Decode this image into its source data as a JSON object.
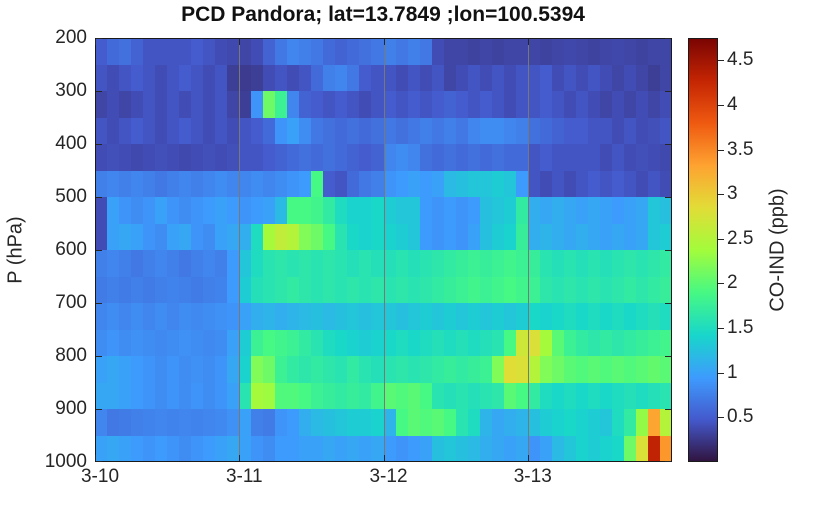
{
  "figure": {
    "background": "#ffffff",
    "text_color": "#262626"
  },
  "chart_data": {
    "type": "heatmap",
    "title": "PCD Pandora; lat=13.7849 ;lon=100.5394",
    "station": "PCD Pandora",
    "lat": 13.7849,
    "lon": 100.5394,
    "xlabel": "",
    "ylabel": "P (hPa)",
    "colorbar_label": "CO-IND (ppb)",
    "x_tick_labels": [
      "3-10",
      "3-11",
      "3-12",
      "3-13"
    ],
    "x_tick_positions_days": [
      0,
      1,
      2,
      3
    ],
    "x_range_days": [
      0,
      4
    ],
    "time_step_hours": 2,
    "gridlines_at_days": [
      1,
      2,
      3
    ],
    "gridline_color": "#787878",
    "y_tick_labels": [
      "200",
      "300",
      "400",
      "500",
      "600",
      "700",
      "800",
      "900",
      "1000"
    ],
    "y_ticks_hpa": [
      200,
      300,
      400,
      500,
      600,
      700,
      800,
      900,
      1000
    ],
    "pressure_range_hpa": [
      200,
      1000
    ],
    "pressure_row_edges_hpa": [
      200,
      250,
      300,
      350,
      400,
      450,
      500,
      550,
      600,
      650,
      700,
      750,
      800,
      850,
      900,
      950,
      1000
    ],
    "value_range_ppb": [
      0,
      4.75
    ],
    "colorbar_tick_labels": [
      "0.5",
      "1",
      "1.5",
      "2",
      "2.5",
      "3",
      "3.5",
      "4",
      "4.5"
    ],
    "colorbar_tick_values": [
      0.5,
      1,
      1.5,
      2,
      2.5,
      3,
      3.5,
      4,
      4.5
    ],
    "colormap": {
      "name": "turbo",
      "stops": [
        "#30123b",
        "#4458cb",
        "#3e9bfe",
        "#18d6cb",
        "#46f884",
        "#a2fc3c",
        "#e1dd37",
        "#fea331",
        "#ef5a11",
        "#c42503",
        "#7a0403"
      ]
    },
    "values_ppb": [
      [
        0.5,
        0.6,
        0.65,
        0.55,
        0.45,
        0.45,
        0.45,
        0.45,
        0.5,
        0.45,
        0.4,
        0.38,
        0.35,
        0.4,
        0.55,
        0.7,
        0.8,
        0.75,
        0.7,
        0.6,
        0.55,
        0.6,
        0.65,
        0.7,
        0.75,
        0.7,
        0.75,
        0.7,
        0.4,
        0.35,
        0.35,
        0.33,
        0.35,
        0.33,
        0.35,
        0.35,
        0.35,
        0.33,
        0.35,
        0.37,
        0.35,
        0.33,
        0.35,
        0.37,
        0.35,
        0.33,
        0.35,
        0.35
      ],
      [
        0.45,
        0.4,
        0.45,
        0.5,
        0.45,
        0.4,
        0.45,
        0.5,
        0.45,
        0.4,
        0.45,
        0.3,
        0.28,
        0.3,
        0.4,
        0.45,
        0.4,
        0.45,
        0.6,
        0.75,
        0.8,
        0.7,
        0.5,
        0.45,
        0.45,
        0.4,
        0.45,
        0.4,
        0.45,
        0.35,
        0.4,
        0.45,
        0.4,
        0.45,
        0.4,
        0.45,
        0.45,
        0.5,
        0.4,
        0.45,
        0.4,
        0.45,
        0.4,
        0.35,
        0.4,
        0.35,
        0.3,
        0.35
      ],
      [
        0.35,
        0.4,
        0.35,
        0.4,
        0.45,
        0.4,
        0.45,
        0.4,
        0.45,
        0.4,
        0.45,
        0.35,
        0.3,
        0.9,
        2.1,
        1.8,
        0.8,
        0.55,
        0.5,
        0.45,
        0.5,
        0.45,
        0.4,
        0.45,
        0.5,
        0.45,
        0.5,
        0.45,
        0.5,
        0.55,
        0.5,
        0.45,
        0.5,
        0.45,
        0.4,
        0.45,
        0.45,
        0.5,
        0.45,
        0.4,
        0.45,
        0.4,
        0.35,
        0.4,
        0.35,
        0.4,
        0.35,
        0.4
      ],
      [
        0.45,
        0.4,
        0.45,
        0.5,
        0.45,
        0.4,
        0.45,
        0.5,
        0.45,
        0.4,
        0.45,
        0.4,
        0.45,
        0.5,
        0.6,
        0.9,
        1.0,
        0.85,
        0.7,
        0.65,
        0.6,
        0.65,
        0.6,
        0.65,
        0.7,
        0.65,
        0.7,
        0.75,
        0.7,
        0.75,
        0.7,
        0.8,
        0.85,
        0.85,
        0.8,
        0.75,
        0.65,
        0.6,
        0.55,
        0.5,
        0.5,
        0.45,
        0.45,
        0.4,
        0.45,
        0.4,
        0.42,
        0.45
      ],
      [
        0.4,
        0.42,
        0.4,
        0.38,
        0.4,
        0.42,
        0.4,
        0.38,
        0.4,
        0.42,
        0.4,
        0.42,
        0.45,
        0.45,
        0.5,
        0.55,
        0.6,
        0.65,
        0.6,
        0.65,
        0.6,
        0.55,
        0.5,
        0.55,
        0.8,
        0.85,
        0.8,
        0.65,
        0.6,
        0.65,
        0.6,
        0.65,
        0.6,
        0.65,
        0.6,
        0.6,
        0.45,
        0.5,
        0.45,
        0.45,
        0.45,
        0.45,
        0.4,
        0.45,
        0.4,
        0.42,
        0.4,
        0.38
      ],
      [
        0.75,
        0.8,
        0.75,
        0.8,
        0.75,
        0.7,
        0.75,
        0.8,
        0.75,
        0.8,
        0.85,
        0.8,
        0.8,
        0.85,
        0.8,
        0.85,
        0.9,
        0.95,
        1.9,
        0.5,
        0.45,
        0.6,
        0.7,
        0.75,
        0.9,
        0.95,
        1.0,
        0.95,
        1.0,
        1.2,
        1.25,
        1.3,
        1.3,
        1.35,
        1.3,
        0.95,
        0.45,
        0.4,
        0.45,
        0.4,
        0.45,
        0.5,
        0.45,
        0.5,
        0.45,
        0.4,
        0.45,
        0.4
      ],
      [
        0.4,
        1.0,
        0.9,
        0.85,
        0.9,
        1.0,
        0.9,
        0.85,
        0.9,
        0.95,
        1.0,
        0.95,
        0.9,
        0.95,
        1.0,
        1.2,
        1.9,
        1.9,
        1.85,
        1.7,
        1.5,
        1.4,
        1.4,
        1.45,
        1.35,
        1.3,
        1.3,
        0.95,
        0.9,
        0.95,
        0.9,
        0.95,
        1.25,
        1.3,
        1.35,
        1.7,
        1.1,
        1.05,
        1.1,
        1.05,
        1.0,
        1.05,
        1.0,
        0.95,
        1.0,
        1.05,
        1.3,
        1.25
      ],
      [
        0.4,
        1.0,
        1.05,
        1.0,
        0.9,
        0.85,
        1.0,
        1.05,
        0.9,
        0.85,
        1.0,
        1.05,
        1.1,
        1.5,
        2.4,
        2.6,
        2.5,
        2.2,
        2.1,
        1.9,
        1.6,
        1.45,
        1.4,
        1.45,
        1.4,
        1.35,
        1.3,
        0.95,
        0.9,
        0.95,
        0.9,
        1.0,
        1.25,
        1.35,
        1.4,
        1.75,
        1.1,
        1.15,
        1.1,
        1.05,
        1.1,
        1.05,
        1.0,
        1.05,
        1.0,
        1.05,
        1.3,
        1.35
      ],
      [
        0.75,
        0.8,
        0.75,
        0.7,
        0.75,
        0.8,
        0.75,
        0.7,
        0.75,
        0.8,
        0.75,
        0.95,
        1.3,
        1.5,
        1.6,
        1.65,
        1.6,
        1.65,
        1.6,
        1.65,
        1.6,
        1.55,
        1.6,
        1.55,
        1.55,
        1.6,
        1.55,
        1.6,
        1.65,
        1.7,
        1.75,
        1.8,
        1.75,
        1.8,
        1.85,
        1.8,
        1.75,
        1.6,
        1.55,
        1.6,
        1.55,
        1.6,
        1.55,
        1.6,
        1.65,
        1.6,
        1.65,
        1.7
      ],
      [
        0.72,
        0.75,
        0.72,
        0.75,
        0.72,
        0.75,
        0.78,
        0.75,
        0.72,
        0.75,
        0.78,
        0.95,
        1.35,
        1.55,
        1.6,
        1.65,
        1.7,
        1.65,
        1.6,
        1.65,
        1.6,
        1.65,
        1.6,
        1.65,
        1.6,
        1.65,
        1.6,
        1.65,
        1.7,
        1.75,
        1.8,
        1.85,
        1.8,
        1.85,
        1.9,
        1.85,
        1.8,
        1.65,
        1.6,
        1.65,
        1.6,
        1.65,
        1.6,
        1.65,
        1.7,
        1.65,
        1.7,
        1.75
      ],
      [
        0.8,
        0.85,
        0.8,
        0.85,
        0.8,
        0.85,
        0.8,
        0.85,
        0.82,
        0.85,
        0.88,
        0.9,
        1.0,
        1.1,
        1.15,
        1.1,
        1.15,
        1.2,
        1.25,
        1.2,
        1.25,
        1.3,
        1.25,
        1.3,
        1.3,
        1.25,
        1.3,
        1.35,
        1.3,
        1.35,
        1.3,
        1.35,
        1.3,
        1.35,
        1.3,
        1.35,
        1.45,
        1.4,
        1.45,
        1.5,
        1.45,
        1.5,
        1.45,
        1.5,
        1.45,
        1.5,
        1.55,
        1.5
      ],
      [
        0.85,
        0.9,
        0.85,
        0.88,
        0.85,
        0.82,
        0.85,
        0.88,
        0.85,
        0.82,
        0.85,
        1.0,
        1.35,
        1.8,
        1.9,
        1.85,
        1.8,
        1.7,
        1.6,
        1.5,
        1.45,
        1.4,
        1.35,
        1.4,
        1.45,
        1.5,
        1.45,
        1.5,
        1.55,
        1.5,
        1.55,
        1.5,
        1.55,
        1.6,
        1.9,
        2.7,
        2.8,
        2.4,
        2.0,
        1.8,
        1.7,
        1.65,
        1.7,
        1.65,
        1.7,
        1.75,
        1.8,
        1.85
      ],
      [
        1.0,
        1.05,
        1.0,
        0.95,
        0.9,
        0.85,
        0.9,
        0.85,
        0.88,
        0.85,
        0.9,
        1.05,
        1.4,
        2.2,
        2.1,
        1.8,
        1.7,
        1.65,
        1.7,
        1.65,
        1.6,
        1.7,
        1.6,
        1.55,
        1.6,
        1.65,
        1.6,
        1.65,
        1.7,
        1.75,
        1.7,
        1.75,
        1.8,
        2.2,
        2.85,
        2.8,
        2.5,
        2.2,
        2.1,
        2.0,
        1.95,
        2.0,
        1.95,
        2.0,
        1.95,
        2.0,
        2.05,
        2.0
      ],
      [
        1.05,
        1.05,
        1.0,
        0.95,
        0.9,
        0.85,
        0.9,
        0.85,
        0.9,
        0.85,
        0.9,
        1.0,
        1.6,
        2.4,
        2.35,
        1.95,
        1.95,
        1.9,
        1.8,
        1.75,
        1.7,
        1.75,
        1.7,
        1.85,
        2.0,
        1.95,
        2.0,
        1.9,
        1.6,
        1.55,
        1.6,
        1.55,
        1.6,
        1.65,
        2.0,
        1.9,
        1.7,
        1.5,
        1.45,
        1.5,
        1.45,
        1.5,
        1.45,
        1.5,
        1.55,
        1.5,
        1.55,
        1.6
      ],
      [
        0.8,
        0.7,
        0.72,
        0.75,
        0.78,
        0.8,
        0.78,
        0.8,
        0.78,
        0.8,
        0.82,
        0.88,
        1.0,
        0.75,
        0.72,
        0.9,
        0.95,
        1.1,
        1.2,
        1.25,
        1.3,
        1.35,
        1.35,
        1.4,
        1.15,
        1.9,
        2.0,
        1.95,
        2.0,
        1.9,
        1.6,
        1.5,
        1.15,
        1.05,
        1.1,
        1.15,
        1.25,
        1.35,
        1.4,
        1.45,
        1.4,
        1.35,
        1.3,
        1.5,
        1.7,
        2.3,
        3.3,
        2.5
      ],
      [
        1.0,
        1.05,
        1.0,
        0.95,
        0.9,
        0.95,
        0.9,
        0.85,
        0.9,
        0.95,
        1.0,
        1.05,
        1.0,
        0.9,
        0.85,
        0.95,
        0.95,
        1.0,
        1.0,
        1.05,
        1.0,
        1.05,
        1.0,
        1.05,
        0.95,
        0.9,
        0.95,
        1.0,
        1.25,
        1.3,
        1.25,
        1.2,
        1.1,
        1.05,
        1.0,
        1.05,
        0.9,
        1.0,
        1.2,
        1.3,
        1.4,
        1.35,
        1.4,
        1.45,
        2.1,
        2.8,
        4.3,
        3.4
      ]
    ]
  }
}
